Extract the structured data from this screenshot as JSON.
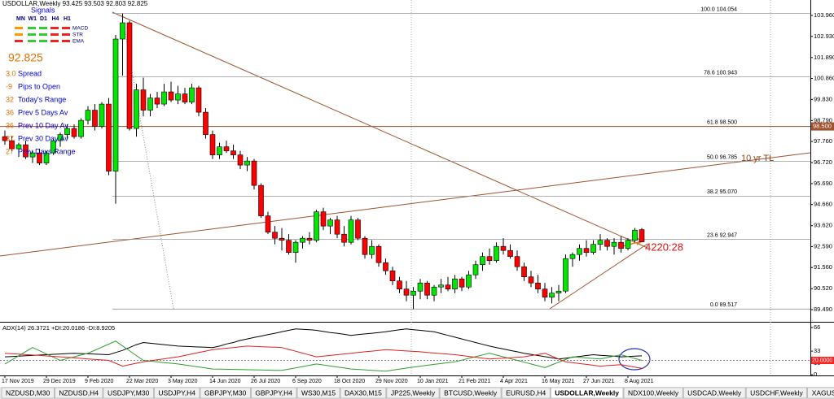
{
  "signals": {
    "title": "Signals",
    "timeframes": [
      "MN",
      "W1",
      "D1",
      "H4",
      "H1"
    ],
    "indicators": [
      "MACD",
      "STR",
      "EMA"
    ]
  },
  "info": [
    {
      "value": "3.0",
      "label": "Spread"
    },
    {
      "value": "-9",
      "label": "Pips to Open"
    },
    {
      "value": "32",
      "label": "Today's Range"
    },
    {
      "value": "36",
      "label": "Prev 5 Days Av"
    },
    {
      "value": "36",
      "label": "Prev 10 Day Av"
    },
    {
      "value": "37",
      "label": "Prev 30 Day Av"
    },
    {
      "value": "27",
      "label": "Prev Days Range"
    }
  ],
  "chart_data": [
    {
      "type": "candlestick",
      "title": "USDOLLAR,Weekly",
      "categories": [
        "17 Nov 2019",
        null,
        null,
        null,
        null,
        null,
        "29 Dec 2019",
        null,
        null,
        null,
        null,
        null,
        "9 Feb 2020",
        null,
        null,
        null,
        null,
        null,
        "22 Mar 2020",
        null,
        null,
        null,
        null,
        null,
        "3 May 2020",
        null,
        null,
        null,
        null,
        null,
        "14 Jun 2020",
        null,
        null,
        null,
        null,
        null,
        "26 Jul 2020",
        null,
        null,
        null,
        null,
        null,
        "6 Sep 2020",
        null,
        null,
        null,
        null,
        null,
        "18 Oct 2020",
        null,
        null,
        null,
        null,
        null,
        "29 Nov 2020",
        null,
        null,
        null,
        null,
        null,
        "10 Jan 2021",
        null,
        null,
        null,
        null,
        null,
        "21 Feb 2021",
        null,
        null,
        null,
        null,
        null,
        "4 Apr 2021",
        null,
        null,
        null,
        null,
        null,
        "16 May 2021",
        null,
        null,
        null,
        null,
        null,
        "27 Jun 2021",
        null,
        null,
        null,
        null,
        null,
        "8 Aug 2021",
        null,
        null
      ],
      "open": [
        98.0,
        97.8,
        97.4,
        97.6,
        97.0,
        97.2,
        96.7,
        97.2,
        97.8,
        98.1,
        98.4,
        98.0,
        98.8,
        99.3,
        98.5,
        99.6,
        96.3,
        102.8,
        103.6,
        98.4,
        100.3,
        99.3,
        99.9,
        99.6,
        100.2,
        99.8,
        100.1,
        99.7,
        100.4,
        99.2,
        98.1,
        97.1,
        97.5,
        97.3,
        97.1,
        96.6,
        96.8,
        95.6,
        94.1,
        93.3,
        93.0,
        92.9,
        92.3,
        92.8,
        93.0,
        92.9,
        94.3,
        93.6,
        93.9,
        93.2,
        92.8,
        93.9,
        93.0,
        92.2,
        92.6,
        91.8,
        91.4,
        90.9,
        90.5,
        90.2,
        90.4,
        90.8,
        90.2,
        90.6,
        90.7,
        90.5,
        91.0,
        90.6,
        91.2,
        91.7,
        92.1,
        91.9,
        92.6,
        92.4,
        92.1,
        91.6,
        91.1,
        90.8,
        90.5,
        90.1,
        90.3,
        90.4,
        92.0,
        92.2,
        92.5,
        92.3,
        92.7,
        92.9,
        92.6,
        92.8,
        92.5,
        92.9,
        93.425
      ],
      "high": [
        98.3,
        98.0,
        97.7,
        97.8,
        97.3,
        97.4,
        97.3,
        97.9,
        98.2,
        98.6,
        98.6,
        98.9,
        99.5,
        99.6,
        99.7,
        99.9,
        103.0,
        104.054,
        103.7,
        100.6,
        100.9,
        100.1,
        100.2,
        100.6,
        100.7,
        100.5,
        100.4,
        100.6,
        100.5,
        99.4,
        98.3,
        97.7,
        97.8,
        97.6,
        97.3,
        97.0,
        96.9,
        95.7,
        94.3,
        93.6,
        93.5,
        93.2,
        92.9,
        93.1,
        93.3,
        94.4,
        94.5,
        94.0,
        94.1,
        93.6,
        94.1,
        94.0,
        93.1,
        92.9,
        92.7,
        92.0,
        91.6,
        91.1,
        90.9,
        90.6,
        91.0,
        90.9,
        90.7,
        91.0,
        91.1,
        91.2,
        91.1,
        91.4,
        91.9,
        92.3,
        92.5,
        92.8,
        93.0,
        92.7,
        92.4,
        91.8,
        91.4,
        91.2,
        90.8,
        90.6,
        90.7,
        92.2,
        92.3,
        92.7,
        92.9,
        92.9,
        93.2,
        93.0,
        93.0,
        93.1,
        93.0,
        93.5,
        93.503
      ],
      "low": [
        97.6,
        97.3,
        97.0,
        96.9,
        96.7,
        96.6,
        96.6,
        97.1,
        97.5,
        97.9,
        97.9,
        97.9,
        98.6,
        98.3,
        98.4,
        96.1,
        94.7,
        101.0,
        98.3,
        98.0,
        99.0,
        99.0,
        99.4,
        99.5,
        99.7,
        99.6,
        99.6,
        99.6,
        99.0,
        97.9,
        96.9,
        96.9,
        97.2,
        96.9,
        96.4,
        96.3,
        95.4,
        94.0,
        93.2,
        92.7,
        92.4,
        92.2,
        91.8,
        92.5,
        92.7,
        92.8,
        93.4,
        93.2,
        93.0,
        92.6,
        92.7,
        92.9,
        92.0,
        92.0,
        91.6,
        91.2,
        90.7,
        90.3,
        89.9,
        89.517,
        90.0,
        90.0,
        89.9,
        90.3,
        90.4,
        90.3,
        90.4,
        90.5,
        91.0,
        91.4,
        91.7,
        91.8,
        92.2,
        92.0,
        91.4,
        90.9,
        90.6,
        90.3,
        89.9,
        89.8,
        89.9,
        90.3,
        91.6,
        91.9,
        92.1,
        92.2,
        92.4,
        92.4,
        92.2,
        92.3,
        92.4,
        92.8,
        92.803
      ],
      "close": [
        97.8,
        97.4,
        97.6,
        97.0,
        97.2,
        96.7,
        97.2,
        97.8,
        98.1,
        98.4,
        98.0,
        98.8,
        99.3,
        98.5,
        99.6,
        96.3,
        102.8,
        103.6,
        98.4,
        100.3,
        99.3,
        99.9,
        99.6,
        100.2,
        99.8,
        100.1,
        99.7,
        100.4,
        99.2,
        98.1,
        97.1,
        97.5,
        97.3,
        97.1,
        96.6,
        96.8,
        95.6,
        94.1,
        93.3,
        93.0,
        92.9,
        92.3,
        92.8,
        93.0,
        92.9,
        94.3,
        93.6,
        93.9,
        93.2,
        92.8,
        93.9,
        93.0,
        92.2,
        92.6,
        91.8,
        91.4,
        90.9,
        90.5,
        90.2,
        90.4,
        90.8,
        90.2,
        90.6,
        90.7,
        90.5,
        91.0,
        90.6,
        91.2,
        91.7,
        92.1,
        91.9,
        92.6,
        92.4,
        92.1,
        91.6,
        91.1,
        90.8,
        90.5,
        90.1,
        90.3,
        90.4,
        92.0,
        92.2,
        92.5,
        92.3,
        92.7,
        92.9,
        92.6,
        92.8,
        92.5,
        92.9,
        93.4,
        92.825
      ],
      "up_color": "#00e600",
      "down_color": "#ff0000",
      "ylim": [
        88.89,
        104.6
      ],
      "yticks": [
        {
          "value": 103.96,
          "label": "103.960"
        },
        {
          "value": 102.93,
          "label": "102.930"
        },
        {
          "value": 101.89,
          "label": "101.890"
        },
        {
          "value": 100.86,
          "label": "100.860"
        },
        {
          "value": 99.83,
          "label": "99.830"
        },
        {
          "value": 98.79,
          "label": "98.790"
        },
        {
          "value": 97.76,
          "label": "97.760"
        },
        {
          "value": 96.72,
          "label": "96.720"
        },
        {
          "value": 95.69,
          "label": "95.690"
        },
        {
          "value": 94.66,
          "label": "94.660"
        },
        {
          "value": 93.62,
          "label": "93.620"
        },
        {
          "value": 92.59,
          "label": "92.590"
        },
        {
          "value": 91.56,
          "label": "91.560"
        },
        {
          "value": 90.52,
          "label": "90.520"
        },
        {
          "value": 89.49,
          "label": "89.490"
        }
      ],
      "fib_levels": [
        {
          "value": 104.054,
          "label": "100.0  104.054"
        },
        {
          "value": 100.943,
          "label": "78.6  100.943"
        },
        {
          "value": 98.5,
          "label": "61.8  98.500"
        },
        {
          "value": 96.785,
          "label": "50.0  96.785"
        },
        {
          "value": 95.07,
          "label": "38.2  95.070"
        },
        {
          "value": 92.947,
          "label": "23.6  92.947"
        },
        {
          "value": 89.517,
          "label": "0.0  89.517"
        }
      ],
      "price_markers": [
        {
          "value": 98.5,
          "label": "98.500",
          "color": "#a0522d"
        }
      ],
      "annotations": [
        "10 yr TL",
        "4220:28"
      ]
    },
    {
      "type": "line",
      "title": "ADX(14) 26.3721 +DI:20.0186 -DI:8.9205",
      "ylim": [
        -1,
        71.7
      ],
      "yticks": [
        66,
        33,
        16,
        0
      ],
      "levels": [
        {
          "value": 20,
          "label": "20.0000"
        }
      ],
      "series": [
        {
          "color": "#000000",
          "values": [
            25,
            25.5,
            26,
            26.5,
            27,
            27.5,
            28,
            28.5,
            29,
            29.5,
            30,
            29.6,
            29.2,
            28.8,
            28.4,
            28,
            31,
            34,
            38,
            42,
            45,
            44,
            43,
            42,
            41,
            40,
            39.6,
            39.2,
            38.8,
            38.4,
            38,
            40,
            43,
            45,
            48,
            50,
            52,
            54,
            56,
            58,
            60,
            62,
            64,
            63.5,
            63,
            62,
            60.5,
            59,
            58,
            56.5,
            55,
            56,
            57,
            58,
            59,
            60,
            61.5,
            63,
            64,
            63,
            62,
            61,
            60,
            57.5,
            55,
            52.5,
            50,
            47.5,
            45,
            42.5,
            40,
            38,
            36,
            34,
            32,
            30,
            28.4,
            26.8,
            25.2,
            23.6,
            22,
            23.2,
            24.4,
            25.6,
            26.8,
            28,
            27.2,
            26.5,
            25.8,
            25,
            25.4,
            25.9,
            26.3721
          ]
        },
        {
          "color": "#2e9e2e",
          "values": [
            15,
            20.75,
            26.5,
            32.25,
            38,
            33.5,
            29,
            24.5,
            20,
            22.5,
            25,
            27.5,
            30,
            34.25,
            38.5,
            42.75,
            47,
            40.25,
            33.5,
            26.75,
            20,
            19,
            18,
            17,
            16,
            15,
            13.6,
            12.2,
            10.8,
            9.4,
            8,
            7.8,
            7.6,
            7.4,
            7.2,
            7,
            6.8,
            6.6,
            6.4,
            6.2,
            6,
            7.8,
            9.6,
            11.4,
            13.2,
            15,
            13.6,
            12.2,
            10.8,
            9.4,
            8,
            7.4,
            6.8,
            6.2,
            5.6,
            5,
            6.4,
            7.8,
            9.2,
            10.6,
            12,
            13.2,
            14.4,
            15.6,
            16.8,
            18,
            20.4,
            22.8,
            25.2,
            27.6,
            30,
            27.5,
            25,
            22.5,
            20,
            17.5,
            15,
            12.5,
            10,
            13.75,
            17.5,
            21.25,
            25,
            24.25,
            23.5,
            22.75,
            22,
            24,
            26,
            28,
            25.3,
            22.7,
            20.0186
          ]
        },
        {
          "color": "#e02020",
          "values": [
            30,
            29.4,
            28.8,
            28.1,
            27.5,
            26.9,
            26.3,
            25.6,
            25,
            24.3,
            23.6,
            22.9,
            22.1,
            21.4,
            20.7,
            20,
            16,
            12,
            14,
            16,
            18,
            19.4,
            20.8,
            22.2,
            23.6,
            25,
            27,
            29,
            31,
            33,
            35,
            36,
            37,
            38,
            39,
            40,
            39.6,
            39.2,
            38.8,
            38.4,
            38,
            35.4,
            32.8,
            30.2,
            27.6,
            25,
            26,
            27,
            28,
            29,
            30,
            31,
            32,
            33,
            34,
            35,
            34.4,
            33.8,
            33.2,
            32.6,
            32,
            31.2,
            30.4,
            29.6,
            28.8,
            28,
            26.8,
            25.6,
            24.4,
            23.2,
            22,
            22.6,
            23.2,
            23.8,
            24.4,
            25,
            26.7,
            28.3,
            30,
            26,
            22,
            18,
            16.8,
            15.6,
            14.4,
            13.2,
            12,
            12.7,
            13.3,
            14,
            12.3,
            10.6,
            8.9205
          ]
        }
      ]
    }
  ],
  "tabs": [
    "NZDUSD,M30",
    "NZDUSD,H4",
    "USDJPY,M30",
    "USDJPY,H4",
    "GBPJPY,M30",
    "GBPJPY,H4",
    "WS30,M15",
    "DAX30,M15",
    "JP225,Weekly",
    "BTCUSD,Weekly",
    "EURUSD,H4",
    "USDOLLAR,Weekly",
    "NDX100,Weekly",
    "USDCAD,Weekly",
    "USDCHF,Weekly",
    "XAGUSD,H4"
  ],
  "active_tab": 11
}
